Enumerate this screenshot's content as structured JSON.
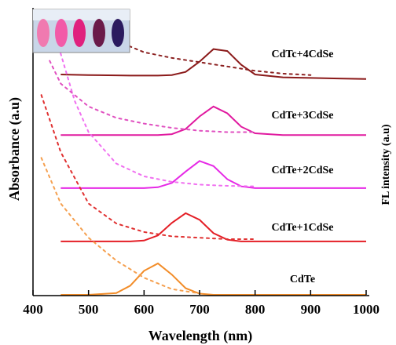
{
  "chart_data": {
    "type": "line",
    "xlabel": "Wavelength (nm)",
    "ylabel": "Absorbance (a.u)",
    "y2label": "FL intensity (a.u)",
    "xlim": [
      400,
      1000
    ],
    "xticks": [
      400,
      500,
      600,
      700,
      800,
      900,
      1000
    ],
    "ylim": [
      0,
      100
    ],
    "series": [
      {
        "name": "CdTe",
        "color": "#f28c28",
        "style": "solid",
        "x": [
          450,
          500,
          550,
          575,
          600,
          625,
          650,
          675,
          700,
          725,
          750,
          775,
          800,
          850,
          900,
          950,
          1000
        ],
        "values": [
          0,
          0,
          0.6,
          3.2,
          8.4,
          11,
          7.1,
          2.3,
          0.4,
          0,
          0,
          0,
          0,
          0,
          0,
          0,
          0
        ]
      },
      {
        "name": "CdTe+1CdSe",
        "color": "#e41e26",
        "style": "solid",
        "x": [
          450,
          500,
          550,
          575,
          600,
          625,
          650,
          675,
          700,
          725,
          750,
          775,
          800,
          850,
          900,
          950,
          1000
        ],
        "values": [
          18.7,
          18.7,
          18.7,
          18.7,
          19.0,
          20.8,
          25.2,
          28.6,
          26.3,
          21.6,
          19.3,
          18.7,
          18.7,
          18.7,
          18.7,
          18.7,
          18.7
        ]
      },
      {
        "name": "CdTe+2CdSe",
        "color": "#e62ae6",
        "style": "solid",
        "x": [
          450,
          500,
          550,
          575,
          600,
          625,
          650,
          675,
          700,
          725,
          750,
          775,
          800,
          850,
          900,
          950,
          1000
        ],
        "values": [
          37.4,
          37.4,
          37.4,
          37.4,
          37.4,
          37.7,
          39.2,
          43.2,
          46.9,
          45.1,
          40.5,
          38.0,
          37.4,
          37.4,
          37.4,
          37.4,
          37.4
        ]
      },
      {
        "name": "CdTe+3CdSe",
        "color": "#e0199f",
        "style": "solid",
        "x": [
          450,
          500,
          550,
          575,
          600,
          625,
          650,
          675,
          700,
          725,
          750,
          775,
          800,
          850,
          900,
          950,
          1000
        ],
        "values": [
          56,
          56,
          56,
          56,
          56,
          56,
          56.3,
          58.1,
          62.5,
          66,
          63.6,
          58.9,
          56.6,
          56,
          56,
          56,
          56
        ]
      },
      {
        "name": "CdTc+4CdSe",
        "color": "#8b1a1a",
        "style": "solid",
        "x": [
          450,
          500,
          550,
          575,
          600,
          625,
          650,
          675,
          700,
          725,
          750,
          775,
          800,
          850,
          900,
          950,
          1000
        ],
        "values": [
          77.2,
          77.0,
          76.9,
          76.8,
          76.8,
          76.8,
          77.0,
          78.1,
          81.7,
          86.1,
          85.4,
          80.6,
          77.2,
          76.2,
          76,
          75.8,
          75.6
        ]
      },
      {
        "color": "#f5a050",
        "style": "dotted",
        "x": [
          415,
          450,
          500,
          550,
          600,
          650,
          700
        ],
        "values": [
          48,
          32,
          20,
          12,
          6,
          2,
          0.5
        ]
      },
      {
        "color": "#e03030",
        "style": "dotted",
        "x": [
          415,
          450,
          500,
          550,
          600,
          650,
          700,
          750,
          800
        ],
        "values": [
          70,
          50,
          32,
          25,
          22,
          20.5,
          20,
          19.5,
          19.5
        ]
      },
      {
        "color": "#f070f0",
        "style": "dotted",
        "x": [
          440,
          475,
          500,
          550,
          600,
          650,
          700,
          750,
          800
        ],
        "values": [
          91,
          68,
          57,
          46,
          41.5,
          39.6,
          38.6,
          38.2,
          38
        ]
      },
      {
        "color": "#e050c0",
        "style": "dotted",
        "x": [
          430,
          450,
          500,
          550,
          600,
          650,
          700,
          750,
          800
        ],
        "values": [
          82,
          74,
          66,
          62,
          60,
          58.5,
          57.5,
          57,
          57
        ]
      },
      {
        "color": "#8b2020",
        "style": "dotted",
        "x": [
          500,
          550,
          600,
          650,
          700,
          750,
          800,
          850,
          900
        ],
        "values": [
          93,
          89,
          85,
          83,
          81.5,
          80,
          78.5,
          77.5,
          77
        ]
      }
    ]
  }
}
